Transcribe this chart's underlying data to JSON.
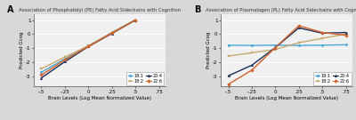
{
  "panel_A": {
    "title": "Association of Phosphatidyl (PE) Fatty Acid Sidechains with Cognition",
    "lines": {
      "18:1": {
        "x": [
          -0.5,
          -0.25,
          0.0,
          0.25,
          0.5
        ],
        "y": [
          -2.7,
          -1.75,
          -0.85,
          0.12,
          1.0
        ],
        "color": "#4da6d6",
        "lw": 1.0
      },
      "18:2": {
        "x": [
          -0.5,
          -0.25,
          0.0,
          0.25,
          0.5
        ],
        "y": [
          -2.45,
          -1.62,
          -0.82,
          0.12,
          1.0
        ],
        "color": "#c8a96e",
        "lw": 1.0
      },
      "20:4": {
        "x": [
          -0.5,
          -0.25,
          0.0,
          0.25,
          0.5
        ],
        "y": [
          -3.1,
          -1.95,
          -0.88,
          0.05,
          1.0
        ],
        "color": "#1a2e58",
        "lw": 1.0
      },
      "22:6": {
        "x": [
          -0.5,
          -0.25,
          0.0,
          0.25,
          0.5
        ],
        "y": [
          -2.9,
          -1.82,
          -0.87,
          0.07,
          1.0
        ],
        "color": "#d4622a",
        "lw": 1.0
      }
    },
    "xlabel": "Brain Levels (Log Mean Normalized Value)",
    "ylabel": "Predicted Gcog",
    "xlim": [
      -0.58,
      0.82
    ],
    "ylim": [
      -3.7,
      1.4
    ],
    "xticks": [
      -0.5,
      -0.25,
      0.0,
      0.25,
      0.5,
      0.75
    ],
    "xtick_labels": [
      "-.5",
      "-.25",
      "0",
      ".25",
      ".5",
      ".75"
    ],
    "yticks": [
      -3,
      -2,
      -1,
      0,
      1
    ],
    "ytick_labels": [
      "-3",
      "-2",
      "-1",
      "0",
      "1"
    ]
  },
  "panel_B": {
    "title": "Association of Plasmalogen (PL) Fatty Acid Sidechains with Cognition",
    "lines": {
      "18:1": {
        "x": [
          -0.5,
          -0.25,
          0.0,
          0.25,
          0.5,
          0.75
        ],
        "y": [
          -0.78,
          -0.8,
          -0.78,
          -0.8,
          -0.78,
          -0.75
        ],
        "color": "#4da6d6",
        "lw": 1.0
      },
      "18:2": {
        "x": [
          -0.5,
          -0.25,
          0.0,
          0.25,
          0.5,
          0.75
        ],
        "y": [
          -1.55,
          -1.32,
          -1.08,
          -0.6,
          -0.3,
          0.02
        ],
        "color": "#c8a96e",
        "lw": 1.0
      },
      "20:4": {
        "x": [
          -0.5,
          -0.25,
          0.0,
          0.25,
          0.5,
          0.75
        ],
        "y": [
          -2.95,
          -2.2,
          -0.95,
          0.45,
          0.07,
          0.12
        ],
        "color": "#1a2e58",
        "lw": 1.0
      },
      "22:6": {
        "x": [
          -0.5,
          -0.25,
          0.0,
          0.25,
          0.5,
          0.75
        ],
        "y": [
          -3.55,
          -2.55,
          -0.95,
          0.6,
          0.12,
          -0.08
        ],
        "color": "#d4622a",
        "lw": 1.0
      }
    },
    "xlabel": "Brain Levels (Log Mean Normalized Value)",
    "ylabel": "Predicted Gcog",
    "xlim": [
      -0.58,
      0.82
    ],
    "ylim": [
      -3.7,
      1.4
    ],
    "xticks": [
      -0.5,
      -0.25,
      0.0,
      0.25,
      0.5,
      0.75
    ],
    "xtick_labels": [
      "-.5",
      "-.25",
      "0",
      ".25",
      ".5",
      ".75"
    ],
    "yticks": [
      -3,
      -2,
      -1,
      0,
      1
    ],
    "ytick_labels": [
      "-3",
      "-2",
      "-1",
      "0",
      "1"
    ]
  },
  "legend_entries": [
    "18:1",
    "18:2",
    "20:4",
    "22:6"
  ],
  "legend_colors": [
    "#4da6d6",
    "#c8a96e",
    "#1a2e58",
    "#d4622a"
  ],
  "legend_markers": [
    "o",
    "s",
    "^",
    "D"
  ],
  "fig_bg": "#d8d8d8",
  "plot_bg": "#f0f0f0",
  "grid_color": "#ffffff",
  "spine_color": "#555555"
}
